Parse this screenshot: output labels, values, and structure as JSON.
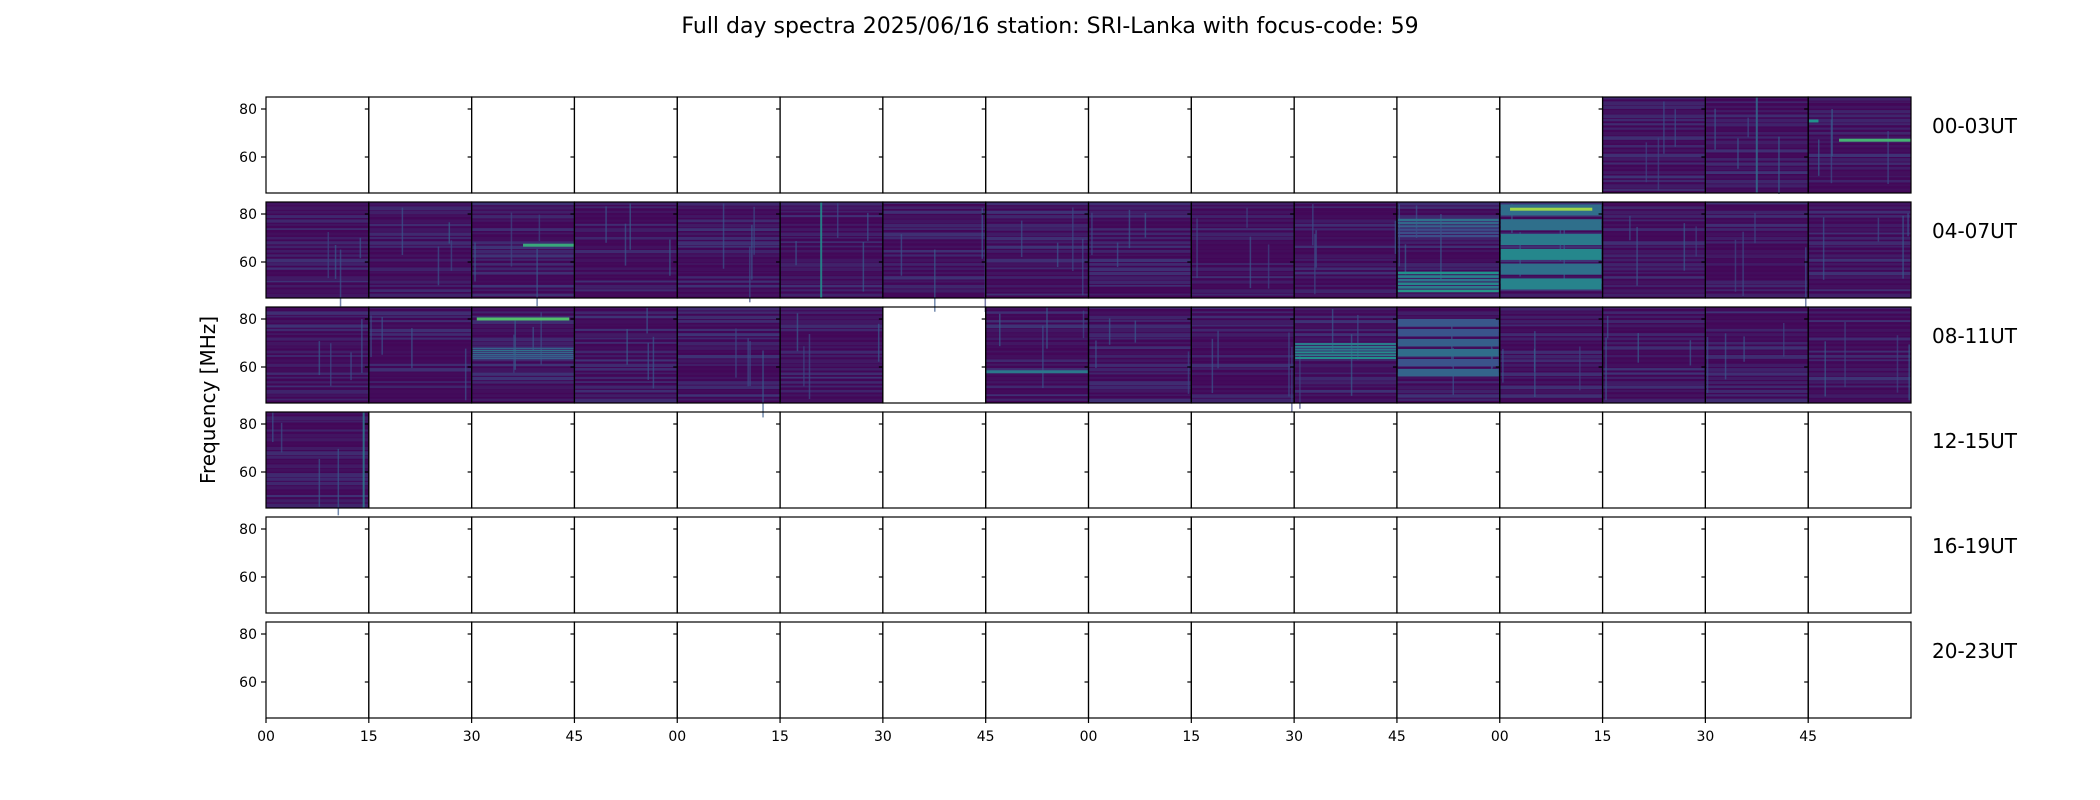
{
  "chart_data": {
    "type": "heatmap",
    "title": "Full day spectra 2025/06/16 station: SRI-Lanka with focus-code: 59",
    "ylabel": "Frequency [MHz]",
    "xlabel": "",
    "ylim": [
      45,
      85
    ],
    "yticks": [
      60,
      80
    ],
    "xticks": [
      "00",
      "15",
      "30",
      "45",
      "00",
      "15",
      "30",
      "45",
      "00",
      "15",
      "30",
      "45",
      "00",
      "15",
      "30",
      "45"
    ],
    "minutes_per_panel": 15,
    "panels_per_row": 16,
    "colormap": [
      "#440154",
      "#3b528b",
      "#21918c",
      "#5ec962",
      "#fde725"
    ],
    "rows": [
      {
        "label": "00-03UT",
        "panels": [
          0,
          0,
          0,
          0,
          0,
          0,
          0,
          0,
          0,
          0,
          0,
          0,
          0,
          1,
          1,
          1
        ],
        "features": [
          {
            "panel": 15,
            "kind": "hline",
            "freq": 67,
            "from": 0.3,
            "to": 1.0,
            "level": 0.65
          },
          {
            "panel": 15,
            "kind": "hline",
            "freq": 75,
            "from": 0.0,
            "to": 0.1,
            "level": 0.5
          },
          {
            "panel": 14,
            "kind": "vline",
            "at": 0.5,
            "level": 0.35
          }
        ]
      },
      {
        "label": "04-07UT",
        "panels": [
          1,
          1,
          1,
          1,
          1,
          1,
          1,
          1,
          1,
          1,
          1,
          1,
          1,
          1,
          1,
          1
        ],
        "features": [
          {
            "panel": 2,
            "kind": "hline",
            "freq": 67,
            "from": 0.5,
            "to": 1.0,
            "level": 0.6
          },
          {
            "panel": 5,
            "kind": "vline",
            "at": 0.4,
            "level": 0.5
          },
          {
            "panel": 11,
            "kind": "block",
            "fmin": 47,
            "fmax": 56,
            "level": 0.45
          },
          {
            "panel": 11,
            "kind": "block",
            "fmin": 70,
            "fmax": 78,
            "level": 0.3
          },
          {
            "panel": 12,
            "kind": "block",
            "fmin": 47,
            "fmax": 84,
            "level": 0.42
          },
          {
            "panel": 12,
            "kind": "hline",
            "freq": 82,
            "from": 0.1,
            "to": 0.9,
            "level": 0.85
          }
        ]
      },
      {
        "label": "08-11UT",
        "panels": [
          1,
          1,
          1,
          1,
          1,
          1,
          0,
          1,
          1,
          1,
          1,
          1,
          1,
          1,
          1,
          1
        ],
        "features": [
          {
            "panel": 2,
            "kind": "hline",
            "freq": 80,
            "from": 0.05,
            "to": 0.95,
            "level": 0.7
          },
          {
            "panel": 2,
            "kind": "block",
            "fmin": 63,
            "fmax": 68,
            "level": 0.3
          },
          {
            "panel": 10,
            "kind": "block",
            "fmin": 63,
            "fmax": 70,
            "level": 0.45
          },
          {
            "panel": 11,
            "kind": "hline",
            "freq": 61,
            "from": 0.1,
            "to": 0.7,
            "level": 0.9
          },
          {
            "panel": 11,
            "kind": "block",
            "fmin": 55,
            "fmax": 80,
            "level": 0.32
          },
          {
            "panel": 7,
            "kind": "hline",
            "freq": 58,
            "from": 0.0,
            "to": 1.0,
            "level": 0.4
          }
        ]
      },
      {
        "label": "12-15UT",
        "panels": [
          1,
          0,
          0,
          0,
          0,
          0,
          0,
          0,
          0,
          0,
          0,
          0,
          0,
          0,
          0,
          0
        ],
        "features": [
          {
            "panel": 0,
            "kind": "vline",
            "at": 0.95,
            "level": 0.4
          }
        ]
      },
      {
        "label": "16-19UT",
        "panels": [
          0,
          0,
          0,
          0,
          0,
          0,
          0,
          0,
          0,
          0,
          0,
          0,
          0,
          0,
          0,
          0
        ],
        "features": []
      },
      {
        "label": "20-23UT",
        "panels": [
          0,
          0,
          0,
          0,
          0,
          0,
          0,
          0,
          0,
          0,
          0,
          0,
          0,
          0,
          0,
          0
        ],
        "features": []
      }
    ]
  }
}
